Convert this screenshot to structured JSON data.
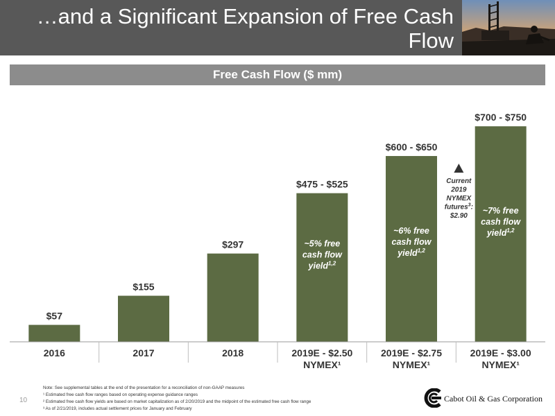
{
  "header": {
    "title": "…and a Significant Expansion of Free Cash Flow"
  },
  "chart_data": {
    "type": "bar",
    "title": "Free Cash Flow ($ mm)",
    "ylim": [
      0,
      800
    ],
    "categories": [
      [
        "2016"
      ],
      [
        "2017"
      ],
      [
        "2018"
      ],
      [
        "2019E - $2.50",
        "NYMEX¹"
      ],
      [
        "2019E - $2.75",
        "NYMEX¹"
      ],
      [
        "2019E - $3.00",
        "NYMEX¹"
      ]
    ],
    "values": [
      57,
      155,
      297,
      500,
      625,
      725
    ],
    "value_labels": [
      "$57",
      "$155",
      "$297",
      "$475 - $525",
      "$600 - $650",
      "$700 - $750"
    ],
    "bar_annotations": [
      null,
      null,
      null,
      {
        "lines": [
          "~5% free",
          "cash flow",
          "yield"
        ],
        "superscript": "1,2"
      },
      {
        "lines": [
          "~6% free",
          "cash flow",
          "yield"
        ],
        "superscript": "1,2"
      },
      {
        "lines": [
          "~7% free",
          "cash flow",
          "yield"
        ],
        "superscript": "1,2"
      }
    ],
    "marker_annotation": {
      "lines": [
        "Current",
        "2019",
        "NYMEX"
      ],
      "futures_line": "futures",
      "futures_superscript": "3",
      "futures_suffix": ":",
      "value": "$2.90"
    },
    "bar_color": "#5c6b43"
  },
  "footnotes": [
    "Note: See supplemental tables at the end of the presentation for a reconciliation of non-GAAP measures",
    "¹ Estimated free cash flow ranges based on operating expense guidance ranges",
    "² Estimated free cash flow yields are based on market capitalization as of 2/20/2019 and the midpoint of the estimated free cash flow range",
    "³ As of 2/21/2019, includes actual settlement prices for January and February"
  ],
  "page_number": "10",
  "logo": {
    "text": "Cabot Oil & Gas Corporation"
  }
}
